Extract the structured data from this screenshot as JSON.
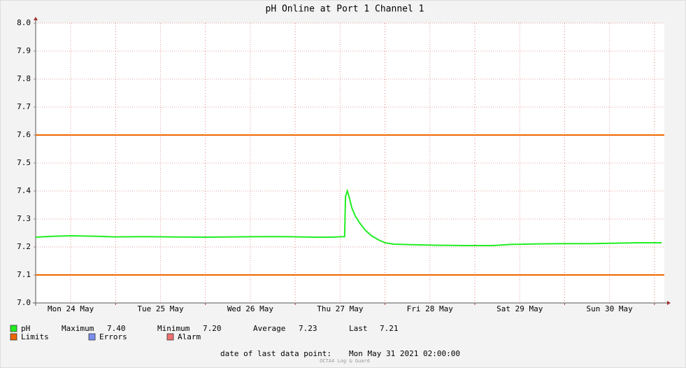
{
  "chart_data": {
    "type": "line",
    "title": "pH Online at Port 1 Channel 1",
    "x": [
      24.11,
      24.3,
      24.5,
      24.8,
      25.0,
      25.3,
      25.6,
      26.0,
      26.3,
      26.6,
      26.9,
      27.2,
      27.4,
      27.55,
      27.56,
      27.58,
      27.6,
      27.63,
      27.67,
      27.72,
      27.78,
      27.85,
      27.93,
      28.0,
      28.1,
      28.3,
      28.6,
      28.9,
      29.2,
      29.4,
      29.7,
      30.0,
      30.3,
      30.5,
      30.8,
      31.08
    ],
    "series": [
      {
        "name": "pH",
        "color": "#22ee22",
        "values": [
          7.235,
          7.238,
          7.24,
          7.238,
          7.236,
          7.237,
          7.236,
          7.235,
          7.236,
          7.237,
          7.237,
          7.235,
          7.235,
          7.237,
          7.38,
          7.4,
          7.38,
          7.34,
          7.31,
          7.285,
          7.26,
          7.24,
          7.225,
          7.215,
          7.21,
          7.208,
          7.206,
          7.205,
          7.205,
          7.209,
          7.211,
          7.212,
          7.212,
          7.213,
          7.215,
          7.215
        ]
      }
    ],
    "limits": {
      "name": "Limits",
      "color": "#ee6600",
      "values": [
        7.6,
        7.1
      ]
    },
    "extra_legend": [
      {
        "name": "Errors",
        "color": "#7a8ef0"
      },
      {
        "name": "Alarm",
        "color": "#f07070"
      }
    ],
    "stats": {
      "labels": [
        "Maximum",
        "Minimum",
        "Average",
        "Last"
      ],
      "values": [
        7.4,
        7.2,
        7.23,
        7.21
      ],
      "value_labels": [
        "7.40",
        "7.20",
        "7.23",
        "7.21"
      ]
    },
    "xlim": [
      24.11,
      31.11
    ],
    "xticks": [
      {
        "value": 24.5,
        "label": "Mon 24 May"
      },
      {
        "value": 25.5,
        "label": "Tue 25 May"
      },
      {
        "value": 26.5,
        "label": "Wed 26 May"
      },
      {
        "value": 27.5,
        "label": "Thu 27 May"
      },
      {
        "value": 28.5,
        "label": "Fri 28 May"
      },
      {
        "value": 29.5,
        "label": "Sat 29 May"
      },
      {
        "value": 30.5,
        "label": "Sun 30 May"
      }
    ],
    "x_major_ticks": [
      25,
      26,
      27,
      28,
      29,
      30,
      31
    ],
    "ylim": [
      7.0,
      8.0
    ],
    "yticks": [
      {
        "value": 7,
        "label": "7.0"
      },
      7.1,
      7.2,
      7.3,
      7.4,
      7.5,
      7.6,
      7.7,
      7.8,
      7.9,
      {
        "value": 8,
        "label": "8.0"
      }
    ],
    "grid": true,
    "footer_label": "date of last data point:",
    "footer_value": "Mon May 31 2021 02:00:00",
    "watermark": "OCTA4 Log & Guard"
  }
}
